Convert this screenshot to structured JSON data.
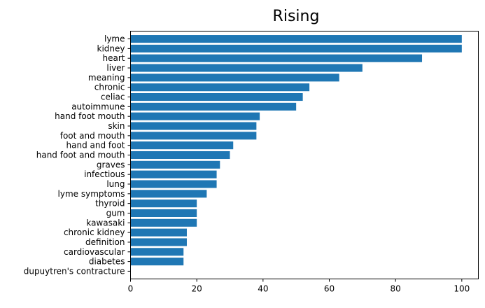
{
  "chart_data": {
    "type": "bar",
    "orientation": "horizontal",
    "title": "Rising",
    "xlabel": "",
    "ylabel": "",
    "xlim": [
      0,
      105
    ],
    "x_ticks": [
      0,
      20,
      40,
      60,
      80,
      100
    ],
    "grid": false,
    "bar_color": "#1f77b4",
    "categories": [
      "lyme",
      "kidney",
      "heart",
      "liver",
      "meaning",
      "chronic",
      "celiac",
      "autoimmune",
      "hand foot mouth",
      "skin",
      "foot and mouth",
      "hand and foot",
      "hand foot and mouth",
      "graves",
      "infectious",
      "lung",
      "lyme  symptoms",
      "thyroid",
      "gum",
      "kawasaki",
      "chronic kidney",
      "definition",
      "cardiovascular",
      "diabetes",
      "dupuytren's contracture"
    ],
    "values": [
      100,
      100,
      88,
      70,
      63,
      54,
      52,
      50,
      39,
      38,
      38,
      31,
      30,
      27,
      26,
      26,
      23,
      20,
      20,
      20,
      17,
      17,
      16,
      16,
      0
    ]
  }
}
